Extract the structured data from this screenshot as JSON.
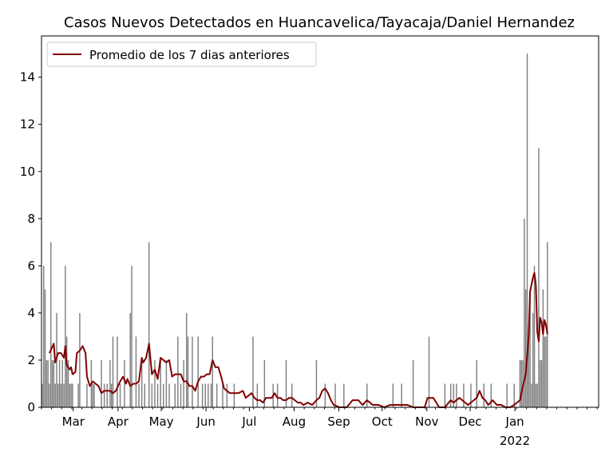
{
  "chart_data": {
    "type": "bar",
    "title": "Casos Nuevos Detectados en Huancavelica/Tayacaja/Daniel Hernandez",
    "xlabel": "",
    "ylabel": "",
    "date_range": [
      "2021-02-07",
      "2022-02-28"
    ],
    "ylim": [
      0,
      15.75
    ],
    "y_ticks": [
      0,
      2,
      4,
      6,
      8,
      10,
      12,
      14
    ],
    "x_ticks": [
      {
        "date": "2021-03-01",
        "label": "Mar"
      },
      {
        "date": "2021-04-01",
        "label": "Apr"
      },
      {
        "date": "2021-05-01",
        "label": "May"
      },
      {
        "date": "2021-06-01",
        "label": "Jun"
      },
      {
        "date": "2021-07-01",
        "label": "Jul"
      },
      {
        "date": "2021-08-01",
        "label": "Aug"
      },
      {
        "date": "2021-09-01",
        "label": "Sep"
      },
      {
        "date": "2021-10-01",
        "label": "Oct"
      },
      {
        "date": "2021-11-01",
        "label": "Nov"
      },
      {
        "date": "2021-12-01",
        "label": "Dec"
      },
      {
        "date": "2022-01-01",
        "label": "Jan",
        "sublabel": "2022"
      }
    ],
    "legend": {
      "position": "top-left",
      "entries": [
        "Promedio de los 7 dias anteriores"
      ]
    },
    "colors": {
      "bars": "#808080",
      "line": "#800000"
    },
    "bars": [
      [
        "2021-02-07",
        1
      ],
      [
        "2021-02-08",
        6
      ],
      [
        "2021-02-09",
        5
      ],
      [
        "2021-02-10",
        2
      ],
      [
        "2021-02-11",
        2
      ],
      [
        "2021-02-12",
        1
      ],
      [
        "2021-02-13",
        7
      ],
      [
        "2021-02-14",
        2
      ],
      [
        "2021-02-15",
        2
      ],
      [
        "2021-02-16",
        1
      ],
      [
        "2021-02-17",
        4
      ],
      [
        "2021-02-18",
        1
      ],
      [
        "2021-02-19",
        2
      ],
      [
        "2021-02-20",
        1
      ],
      [
        "2021-02-21",
        2
      ],
      [
        "2021-02-22",
        1
      ],
      [
        "2021-02-23",
        6
      ],
      [
        "2021-02-24",
        3
      ],
      [
        "2021-02-25",
        2
      ],
      [
        "2021-02-26",
        1
      ],
      [
        "2021-02-27",
        1
      ],
      [
        "2021-02-28",
        1
      ],
      [
        "2021-03-04",
        1
      ],
      [
        "2021-03-05",
        4
      ],
      [
        "2021-03-10",
        1
      ],
      [
        "2021-03-13",
        2
      ],
      [
        "2021-03-14",
        1
      ],
      [
        "2021-03-15",
        1
      ],
      [
        "2021-03-20",
        2
      ],
      [
        "2021-03-22",
        1
      ],
      [
        "2021-03-24",
        1
      ],
      [
        "2021-03-26",
        2
      ],
      [
        "2021-03-27",
        1
      ],
      [
        "2021-03-28",
        3
      ],
      [
        "2021-03-31",
        3
      ],
      [
        "2021-04-02",
        1
      ],
      [
        "2021-04-05",
        2
      ],
      [
        "2021-04-09",
        4
      ],
      [
        "2021-04-10",
        6
      ],
      [
        "2021-04-13",
        3
      ],
      [
        "2021-04-15",
        1
      ],
      [
        "2021-04-17",
        2
      ],
      [
        "2021-04-19",
        1
      ],
      [
        "2021-04-22",
        7
      ],
      [
        "2021-04-24",
        1
      ],
      [
        "2021-04-26",
        2
      ],
      [
        "2021-04-28",
        1
      ],
      [
        "2021-04-30",
        2
      ],
      [
        "2021-05-02",
        1
      ],
      [
        "2021-05-04",
        2
      ],
      [
        "2021-05-06",
        1
      ],
      [
        "2021-05-10",
        1
      ],
      [
        "2021-05-12",
        3
      ],
      [
        "2021-05-14",
        1
      ],
      [
        "2021-05-16",
        2
      ],
      [
        "2021-05-18",
        4
      ],
      [
        "2021-05-19",
        3
      ],
      [
        "2021-05-22",
        3
      ],
      [
        "2021-05-26",
        3
      ],
      [
        "2021-05-29",
        1
      ],
      [
        "2021-05-31",
        1
      ],
      [
        "2021-06-02",
        1
      ],
      [
        "2021-06-04",
        1
      ],
      [
        "2021-06-05",
        3
      ],
      [
        "2021-06-08",
        1
      ],
      [
        "2021-06-12",
        1
      ],
      [
        "2021-06-15",
        1
      ],
      [
        "2021-06-20",
        1
      ],
      [
        "2021-07-03",
        3
      ],
      [
        "2021-07-06",
        1
      ],
      [
        "2021-07-11",
        2
      ],
      [
        "2021-07-17",
        1
      ],
      [
        "2021-07-20",
        1
      ],
      [
        "2021-07-26",
        2
      ],
      [
        "2021-07-30",
        1
      ],
      [
        "2021-08-16",
        2
      ],
      [
        "2021-08-22",
        1
      ],
      [
        "2021-08-29",
        1
      ],
      [
        "2021-09-04",
        1
      ],
      [
        "2021-09-20",
        1
      ],
      [
        "2021-10-08",
        1
      ],
      [
        "2021-10-14",
        1
      ],
      [
        "2021-10-22",
        2
      ],
      [
        "2021-11-02",
        3
      ],
      [
        "2021-11-13",
        1
      ],
      [
        "2021-11-17",
        1
      ],
      [
        "2021-11-19",
        1
      ],
      [
        "2021-11-21",
        1
      ],
      [
        "2021-11-26",
        1
      ],
      [
        "2021-12-01",
        1
      ],
      [
        "2021-12-05",
        2
      ],
      [
        "2021-12-10",
        1
      ],
      [
        "2021-12-15",
        1
      ],
      [
        "2021-12-26",
        1
      ],
      [
        "2021-12-31",
        1
      ],
      [
        "2022-01-04",
        2
      ],
      [
        "2022-01-05",
        2
      ],
      [
        "2022-01-06",
        2
      ],
      [
        "2022-01-07",
        8
      ],
      [
        "2022-01-08",
        5
      ],
      [
        "2022-01-09",
        15
      ],
      [
        "2022-01-10",
        3
      ],
      [
        "2022-01-11",
        5
      ],
      [
        "2022-01-12",
        1
      ],
      [
        "2022-01-13",
        4
      ],
      [
        "2022-01-14",
        6
      ],
      [
        "2022-01-15",
        1
      ],
      [
        "2022-01-16",
        1
      ],
      [
        "2022-01-17",
        11
      ],
      [
        "2022-01-18",
        2
      ],
      [
        "2022-01-19",
        2
      ],
      [
        "2022-01-20",
        5
      ],
      [
        "2022-01-21",
        3
      ],
      [
        "2022-01-22",
        3
      ],
      [
        "2022-01-23",
        7
      ]
    ],
    "avg_series": {
      "name": "Promedio de los 7 dias anteriores",
      "points": [
        [
          "2021-02-12",
          2.3
        ],
        [
          "2021-02-15",
          2.7
        ],
        [
          "2021-02-16",
          1.9
        ],
        [
          "2021-02-18",
          2.3
        ],
        [
          "2021-02-20",
          2.3
        ],
        [
          "2021-02-22",
          2.1
        ],
        [
          "2021-02-23",
          2.6
        ],
        [
          "2021-02-24",
          1.8
        ],
        [
          "2021-02-26",
          1.6
        ],
        [
          "2021-02-27",
          1.7
        ],
        [
          "2021-02-28",
          1.4
        ],
        [
          "2021-03-02",
          1.5
        ],
        [
          "2021-03-03",
          2.3
        ],
        [
          "2021-03-05",
          2.4
        ],
        [
          "2021-03-07",
          2.6
        ],
        [
          "2021-03-09",
          2.3
        ],
        [
          "2021-03-10",
          1.3
        ],
        [
          "2021-03-12",
          0.9
        ],
        [
          "2021-03-14",
          1.1
        ],
        [
          "2021-03-16",
          1.0
        ],
        [
          "2021-03-18",
          0.9
        ],
        [
          "2021-03-20",
          0.6
        ],
        [
          "2021-03-22",
          0.7
        ],
        [
          "2021-03-26",
          0.7
        ],
        [
          "2021-03-28",
          0.6
        ],
        [
          "2021-03-30",
          0.7
        ],
        [
          "2021-04-02",
          1.1
        ],
        [
          "2021-04-04",
          1.3
        ],
        [
          "2021-04-06",
          1.0
        ],
        [
          "2021-04-07",
          1.2
        ],
        [
          "2021-04-09",
          0.9
        ],
        [
          "2021-04-11",
          1.0
        ],
        [
          "2021-04-13",
          1.0
        ],
        [
          "2021-04-15",
          1.1
        ],
        [
          "2021-04-17",
          2.1
        ],
        [
          "2021-04-18",
          1.9
        ],
        [
          "2021-04-20",
          2.1
        ],
        [
          "2021-04-22",
          2.7
        ],
        [
          "2021-04-24",
          1.4
        ],
        [
          "2021-04-26",
          1.6
        ],
        [
          "2021-04-28",
          1.2
        ],
        [
          "2021-04-30",
          2.1
        ],
        [
          "2021-05-02",
          2.0
        ],
        [
          "2021-05-04",
          1.9
        ],
        [
          "2021-05-06",
          2.0
        ],
        [
          "2021-05-08",
          1.3
        ],
        [
          "2021-05-10",
          1.4
        ],
        [
          "2021-05-12",
          1.4
        ],
        [
          "2021-05-14",
          1.4
        ],
        [
          "2021-05-16",
          1.1
        ],
        [
          "2021-05-18",
          1.1
        ],
        [
          "2021-05-20",
          0.9
        ],
        [
          "2021-05-22",
          0.9
        ],
        [
          "2021-05-24",
          0.7
        ],
        [
          "2021-05-26",
          1.1
        ],
        [
          "2021-05-28",
          1.3
        ],
        [
          "2021-05-30",
          1.3
        ],
        [
          "2021-06-01",
          1.4
        ],
        [
          "2021-06-03",
          1.4
        ],
        [
          "2021-06-05",
          2.0
        ],
        [
          "2021-06-07",
          1.7
        ],
        [
          "2021-06-09",
          1.7
        ],
        [
          "2021-06-11",
          1.3
        ],
        [
          "2021-06-13",
          0.8
        ],
        [
          "2021-06-15",
          0.7
        ],
        [
          "2021-06-17",
          0.6
        ],
        [
          "2021-06-20",
          0.6
        ],
        [
          "2021-06-23",
          0.6
        ],
        [
          "2021-06-26",
          0.7
        ],
        [
          "2021-06-28",
          0.4
        ],
        [
          "2021-06-30",
          0.5
        ],
        [
          "2021-07-02",
          0.6
        ],
        [
          "2021-07-04",
          0.4
        ],
        [
          "2021-07-06",
          0.3
        ],
        [
          "2021-07-08",
          0.3
        ],
        [
          "2021-07-10",
          0.2
        ],
        [
          "2021-07-12",
          0.4
        ],
        [
          "2021-07-14",
          0.4
        ],
        [
          "2021-07-16",
          0.4
        ],
        [
          "2021-07-18",
          0.6
        ],
        [
          "2021-07-20",
          0.4
        ],
        [
          "2021-07-22",
          0.4
        ],
        [
          "2021-07-24",
          0.3
        ],
        [
          "2021-07-26",
          0.3
        ],
        [
          "2021-07-28",
          0.4
        ],
        [
          "2021-07-30",
          0.4
        ],
        [
          "2021-08-01",
          0.3
        ],
        [
          "2021-08-03",
          0.2
        ],
        [
          "2021-08-05",
          0.2
        ],
        [
          "2021-08-07",
          0.1
        ],
        [
          "2021-08-10",
          0.2
        ],
        [
          "2021-08-13",
          0.1
        ],
        [
          "2021-08-16",
          0.3
        ],
        [
          "2021-08-18",
          0.4
        ],
        [
          "2021-08-20",
          0.7
        ],
        [
          "2021-08-22",
          0.8
        ],
        [
          "2021-08-24",
          0.6
        ],
        [
          "2021-08-26",
          0.3
        ],
        [
          "2021-08-28",
          0.1
        ],
        [
          "2021-09-01",
          0
        ],
        [
          "2021-09-04",
          0
        ],
        [
          "2021-09-06",
          0
        ],
        [
          "2021-09-10",
          0.3
        ],
        [
          "2021-09-14",
          0.3
        ],
        [
          "2021-09-17",
          0.1
        ],
        [
          "2021-09-20",
          0.3
        ],
        [
          "2021-09-24",
          0.1
        ],
        [
          "2021-09-28",
          0.1
        ],
        [
          "2021-10-02",
          0
        ],
        [
          "2021-10-06",
          0.1
        ],
        [
          "2021-10-10",
          0.1
        ],
        [
          "2021-10-14",
          0.1
        ],
        [
          "2021-10-18",
          0.1
        ],
        [
          "2021-10-22",
          0
        ],
        [
          "2021-10-26",
          0
        ],
        [
          "2021-10-30",
          0
        ],
        [
          "2021-11-01",
          0.4
        ],
        [
          "2021-11-05",
          0.4
        ],
        [
          "2021-11-09",
          0
        ],
        [
          "2021-11-13",
          0
        ],
        [
          "2021-11-17",
          0.3
        ],
        [
          "2021-11-19",
          0.2
        ],
        [
          "2021-11-21",
          0.3
        ],
        [
          "2021-11-23",
          0.4
        ],
        [
          "2021-11-25",
          0.3
        ],
        [
          "2021-11-27",
          0.2
        ],
        [
          "2021-11-29",
          0.1
        ],
        [
          "2021-12-01",
          0.2
        ],
        [
          "2021-12-03",
          0.3
        ],
        [
          "2021-12-05",
          0.4
        ],
        [
          "2021-12-07",
          0.7
        ],
        [
          "2021-12-09",
          0.4
        ],
        [
          "2021-12-11",
          0.3
        ],
        [
          "2021-12-13",
          0.1
        ],
        [
          "2021-12-16",
          0.3
        ],
        [
          "2021-12-19",
          0.1
        ],
        [
          "2021-12-22",
          0.1
        ],
        [
          "2021-12-25",
          0
        ],
        [
          "2021-12-28",
          0
        ],
        [
          "2021-12-31",
          0.1
        ],
        [
          "2022-01-02",
          0.2
        ],
        [
          "2022-01-04",
          0.3
        ],
        [
          "2022-01-06",
          0.9
        ],
        [
          "2022-01-08",
          1.4
        ],
        [
          "2022-01-10",
          3.0
        ],
        [
          "2022-01-11",
          4.9
        ],
        [
          "2022-01-12",
          5.2
        ],
        [
          "2022-01-13",
          5.5
        ],
        [
          "2022-01-14",
          5.7
        ],
        [
          "2022-01-15",
          5.2
        ],
        [
          "2022-01-16",
          3.2
        ],
        [
          "2022-01-17",
          2.8
        ],
        [
          "2022-01-18",
          3.8
        ],
        [
          "2022-01-19",
          3.6
        ],
        [
          "2022-01-20",
          3.1
        ],
        [
          "2022-01-21",
          3.7
        ],
        [
          "2022-01-22",
          3.5
        ],
        [
          "2022-01-23",
          3.1
        ]
      ]
    }
  }
}
